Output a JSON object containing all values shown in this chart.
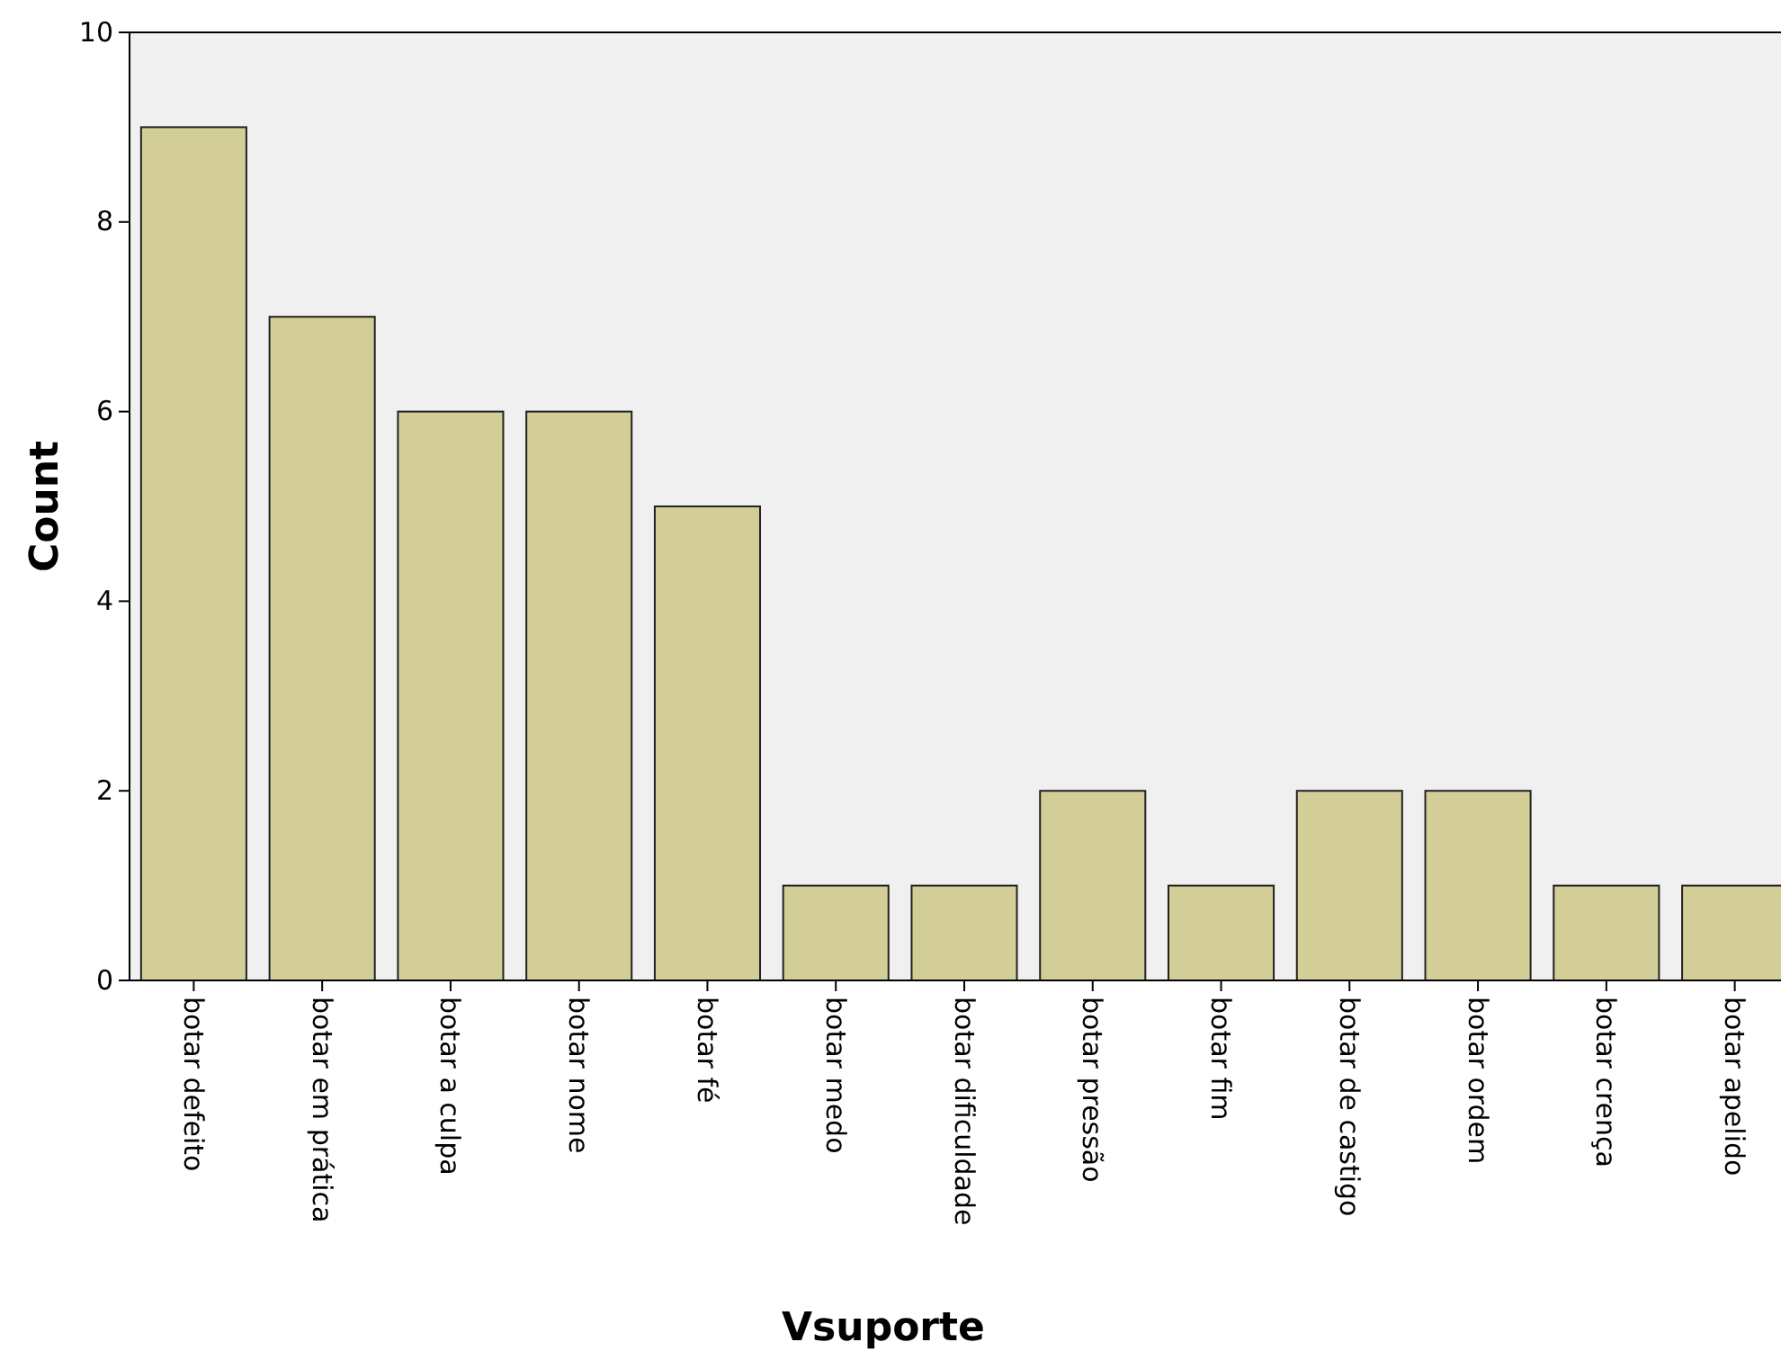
{
  "chart_data": {
    "type": "bar",
    "xlabel": "Vsuporte",
    "ylabel": "Count",
    "categories": [
      "botar defeito",
      "botar em prática",
      "botar a culpa",
      "botar nome",
      "botar fé",
      "botar medo",
      "botar dificuldade",
      "botar pressão",
      "botar fim",
      "botar de castigo",
      "botar ordem",
      "botar crença",
      "botar apelido"
    ],
    "values": [
      9,
      7,
      6,
      6,
      5,
      1,
      1,
      2,
      1,
      2,
      2,
      1,
      1
    ],
    "color": "#d3ce97",
    "ylim": [
      0,
      10
    ],
    "yticks": [
      0,
      2,
      4,
      6,
      8,
      10
    ],
    "grid": false
  }
}
